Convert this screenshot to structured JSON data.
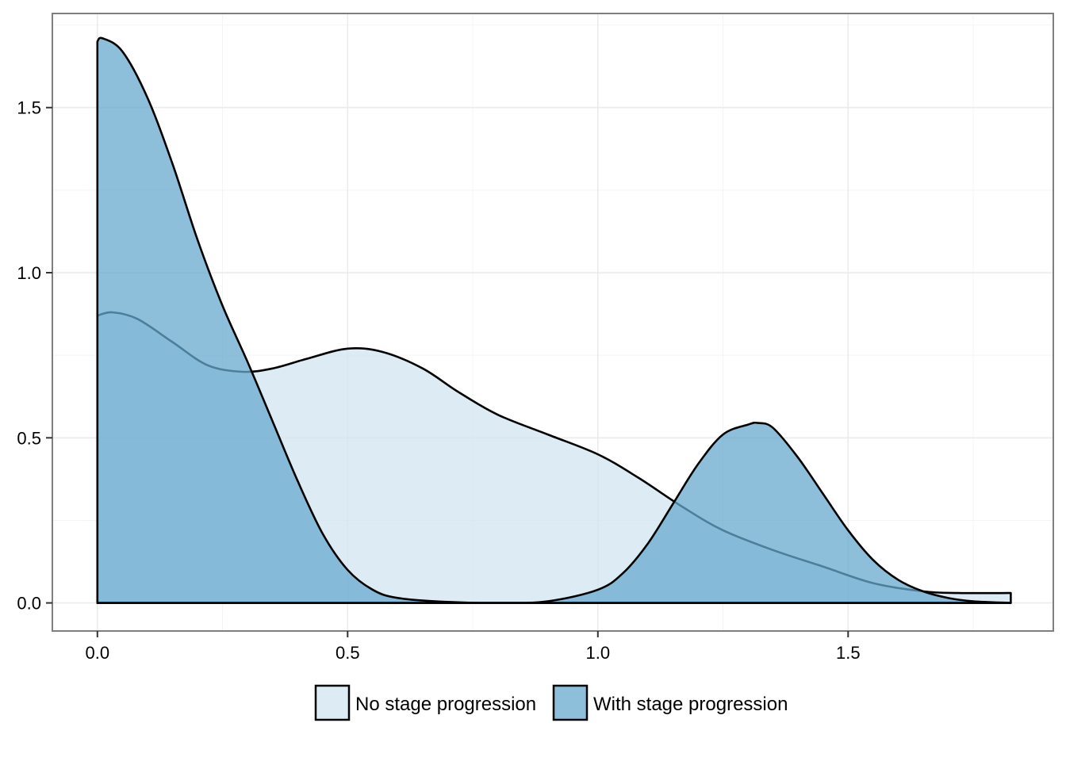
{
  "chart_data": {
    "type": "area",
    "title": "",
    "xlabel": "",
    "ylabel": "",
    "xlim": [
      -0.09,
      1.91
    ],
    "ylim": [
      -0.085,
      1.785
    ],
    "x_ticks": [
      0.0,
      0.5,
      1.0,
      1.5
    ],
    "x_tick_labels": [
      "0.0",
      "0.5",
      "1.0",
      "1.5"
    ],
    "y_ticks": [
      0.0,
      0.5,
      1.0,
      1.5
    ],
    "y_tick_labels": [
      "0.0",
      "0.5",
      "1.0",
      "1.5"
    ],
    "grid": true,
    "legend_position": "bottom",
    "series": [
      {
        "name": "No stage progression",
        "color": "#d1e5f0",
        "x": [
          0.0,
          0.03,
          0.08,
          0.15,
          0.22,
          0.29,
          0.35,
          0.42,
          0.5,
          0.57,
          0.65,
          0.72,
          0.8,
          0.9,
          1.0,
          1.08,
          1.17,
          1.25,
          1.35,
          1.45,
          1.55,
          1.65,
          1.72,
          1.825
        ],
        "y": [
          0.87,
          0.88,
          0.86,
          0.79,
          0.72,
          0.7,
          0.71,
          0.74,
          0.77,
          0.76,
          0.71,
          0.64,
          0.57,
          0.51,
          0.45,
          0.38,
          0.29,
          0.22,
          0.16,
          0.11,
          0.06,
          0.035,
          0.03,
          0.03
        ]
      },
      {
        "name": "With stage progression",
        "color": "#67a9cf",
        "x": [
          0.0,
          0.01,
          0.05,
          0.1,
          0.15,
          0.2,
          0.25,
          0.3,
          0.35,
          0.4,
          0.45,
          0.5,
          0.55,
          0.6,
          0.7,
          0.8,
          0.9,
          1.0,
          1.05,
          1.1,
          1.15,
          1.2,
          1.25,
          1.3,
          1.32,
          1.35,
          1.4,
          1.45,
          1.5,
          1.55,
          1.6,
          1.65,
          1.7,
          1.75,
          1.825
        ],
        "y": [
          1.7,
          1.71,
          1.67,
          1.53,
          1.33,
          1.1,
          0.9,
          0.73,
          0.55,
          0.37,
          0.21,
          0.1,
          0.04,
          0.015,
          0.003,
          0.0,
          0.005,
          0.04,
          0.09,
          0.18,
          0.3,
          0.42,
          0.51,
          0.54,
          0.545,
          0.53,
          0.44,
          0.33,
          0.22,
          0.13,
          0.07,
          0.035,
          0.015,
          0.005,
          0.0
        ]
      }
    ]
  },
  "colors": {
    "panel_border": "#7f7f7f",
    "outline": "#000000",
    "fill_opacity": 0.75
  }
}
